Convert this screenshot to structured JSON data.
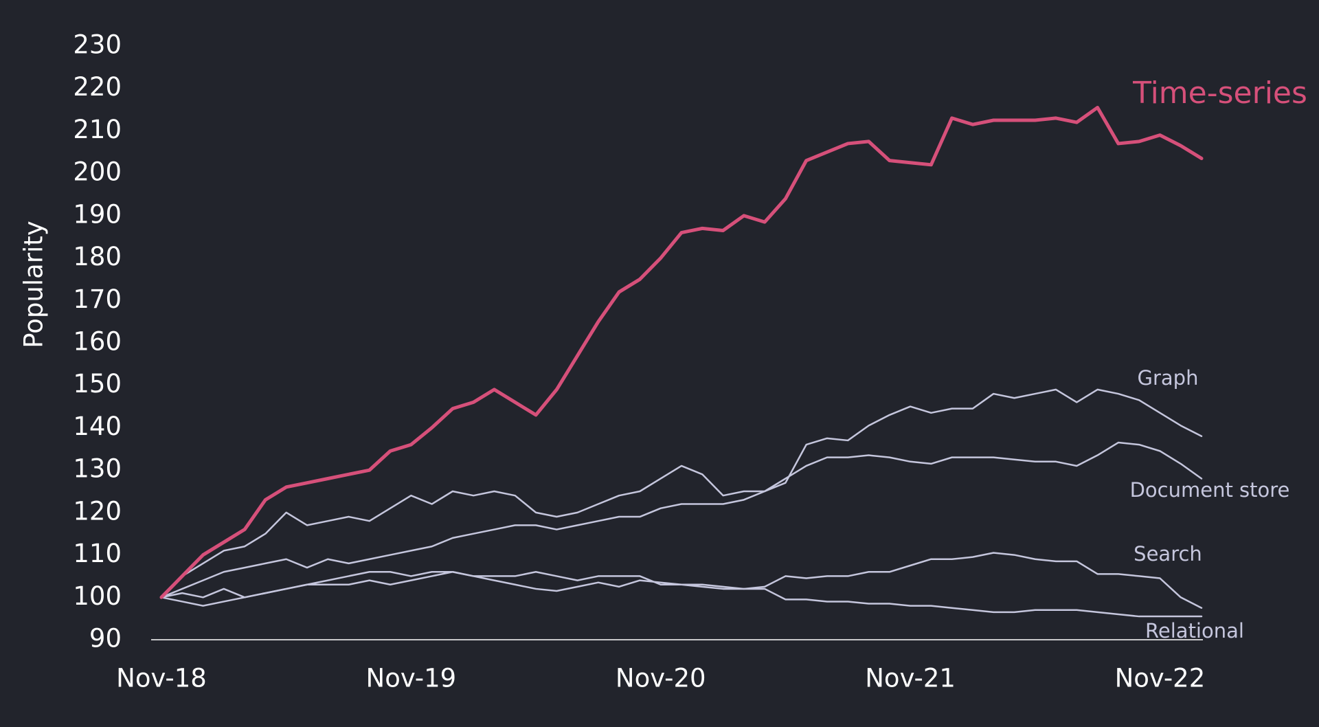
{
  "chart_data": {
    "type": "line",
    "y_label": "Popularity",
    "categories": [
      "Nov-18",
      null,
      null,
      null,
      null,
      null,
      null,
      null,
      null,
      null,
      null,
      null,
      "Nov-19",
      null,
      null,
      null,
      null,
      null,
      null,
      null,
      null,
      null,
      null,
      null,
      "Nov-20",
      null,
      null,
      null,
      null,
      null,
      null,
      null,
      null,
      null,
      null,
      null,
      "Nov-21",
      null,
      null,
      null,
      null,
      null,
      null,
      null,
      null,
      null,
      null,
      null,
      "Nov-22",
      null,
      null
    ],
    "ylim": [
      90,
      230
    ],
    "yticks": [
      90,
      100,
      110,
      120,
      130,
      140,
      150,
      160,
      170,
      180,
      190,
      200,
      210,
      220,
      230
    ],
    "grid": false,
    "series": [
      {
        "name": "Time-series",
        "color": "#d6507a",
        "values": [
          100,
          105,
          110,
          113,
          116,
          123,
          126,
          127,
          128,
          129,
          130,
          134.5,
          136,
          140,
          144.5,
          146,
          149,
          146,
          143,
          149,
          157,
          165,
          172,
          175,
          180,
          186,
          187,
          186.5,
          190,
          188.5,
          194,
          203,
          205,
          207,
          207.5,
          203,
          202.5,
          202,
          213,
          211.5,
          212.5,
          212.5,
          212.5,
          213,
          212,
          215.5,
          207,
          207.5,
          209,
          206.5,
          203.5
        ]
      },
      {
        "name": "Graph",
        "color": "#c5c6dd",
        "values": [
          100,
          105,
          108,
          111,
          112,
          115,
          120,
          117,
          118,
          119,
          118,
          121,
          124,
          122,
          125,
          124,
          125,
          124,
          120,
          119,
          120,
          122,
          124,
          125,
          128,
          131,
          129,
          124,
          125,
          125,
          127,
          136,
          137.5,
          137,
          140.5,
          143,
          145,
          143.5,
          144.5,
          144.5,
          148,
          147,
          148,
          149,
          146,
          149,
          148,
          146.5,
          143.5,
          140.5,
          138
        ]
      },
      {
        "name": "Document store",
        "color": "#c5c6dd",
        "values": [
          100,
          102,
          104,
          106,
          107,
          108,
          109,
          107,
          109,
          108,
          109,
          110,
          111,
          112,
          114,
          115,
          116,
          117,
          117,
          116,
          117,
          118,
          119,
          119,
          121,
          122,
          122,
          122,
          123,
          125,
          128,
          131,
          133,
          133,
          133.5,
          133,
          132,
          131.5,
          133,
          133,
          133,
          132.5,
          132,
          132,
          131,
          133.5,
          136.5,
          136,
          134.5,
          131.5,
          128
        ]
      },
      {
        "name": "Search",
        "color": "#c5c6dd",
        "values": [
          100,
          101,
          100,
          102,
          100,
          101,
          102,
          103,
          103,
          103,
          104,
          103,
          104,
          105,
          106,
          105,
          105,
          105,
          106,
          105,
          104,
          105,
          105,
          105,
          103,
          103,
          102.5,
          102,
          102,
          102.5,
          105,
          104.5,
          105,
          105,
          106,
          106,
          107.5,
          109,
          109,
          109.5,
          110.5,
          110,
          109,
          108.5,
          108.5,
          105.5,
          105.5,
          105,
          104.5,
          100,
          97.5
        ]
      },
      {
        "name": "Relational",
        "color": "#c5c6dd",
        "values": [
          100,
          99,
          98,
          99,
          100,
          101,
          102,
          103,
          104,
          105,
          106,
          106,
          105,
          106,
          106,
          105,
          104,
          103,
          102,
          101.5,
          102.5,
          103.5,
          102.5,
          104,
          103.5,
          103,
          103,
          102.5,
          102,
          102,
          99.5,
          99.5,
          99,
          99,
          98.5,
          98.5,
          98,
          98,
          97.5,
          97,
          96.5,
          96.5,
          97,
          97,
          97,
          96.5,
          96,
          95.5,
          95.5,
          95.5,
          95.5
        ]
      }
    ]
  }
}
